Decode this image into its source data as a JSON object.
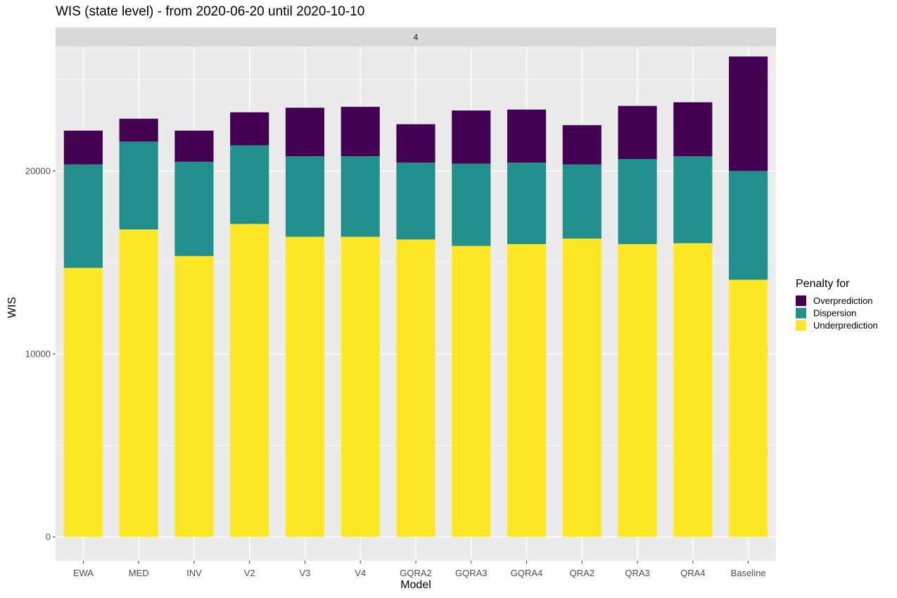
{
  "chart_data": {
    "type": "bar",
    "stacked": true,
    "title": "WIS (state level) - from 2020-06-20 until 2020-10-10",
    "facet_label": "4",
    "xlabel": "Model",
    "ylabel": "WIS",
    "ylim": [
      -1300,
      26800
    ],
    "yticks": [
      0,
      10000,
      20000
    ],
    "ytick_labels": [
      "0",
      "10000",
      "20000"
    ],
    "grid": true,
    "legend_placement": "right",
    "legend_title": "Penalty for",
    "categories": [
      "EWA",
      "MED",
      "INV",
      "V2",
      "V3",
      "V4",
      "GQRA2",
      "GQRA3",
      "GQRA4",
      "QRA2",
      "QRA3",
      "QRA4",
      "Baseline"
    ],
    "series": [
      {
        "name": "Underprediction",
        "color": "#fde725",
        "values": [
          14700,
          16800,
          15350,
          17100,
          16400,
          16400,
          16250,
          15900,
          16000,
          16300,
          16000,
          16050,
          14050
        ]
      },
      {
        "name": "Dispersion",
        "color": "#21908c",
        "values": [
          5650,
          4800,
          5150,
          4300,
          4400,
          4400,
          4200,
          4500,
          4450,
          4050,
          4650,
          4750,
          5950
        ]
      },
      {
        "name": "Overprediction",
        "color": "#440154",
        "values": [
          1850,
          1250,
          1700,
          1800,
          2650,
          2700,
          2100,
          2900,
          2900,
          2150,
          2900,
          2950,
          6250
        ]
      }
    ],
    "legend_order": [
      "Overprediction",
      "Dispersion",
      "Underprediction"
    ],
    "colors": {
      "panel_background": "#ebebeb",
      "strip_background": "#d9d9d9",
      "grid": "#ffffff"
    }
  }
}
